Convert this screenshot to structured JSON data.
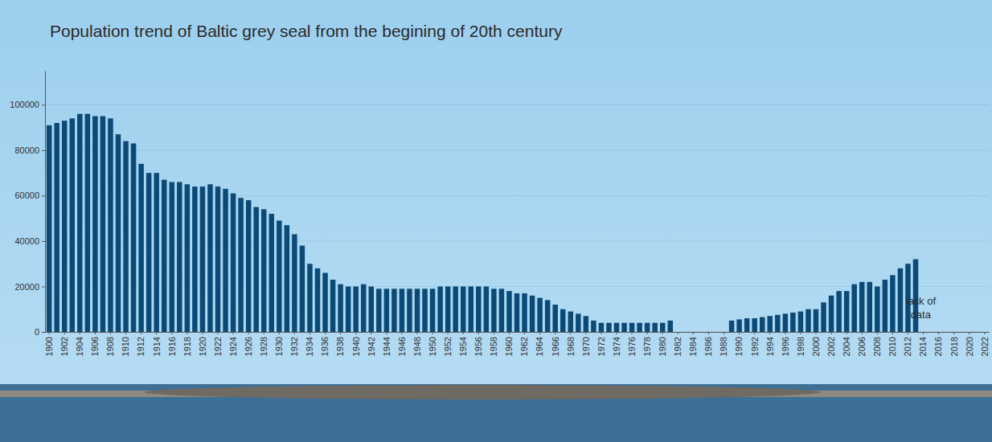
{
  "chart_data": {
    "type": "bar",
    "title": "Population trend of Baltic grey seal from the begining of 20th century",
    "annotation": "lack of data",
    "categories": [
      "1900",
      null,
      "1902",
      null,
      "1904",
      null,
      "1906",
      null,
      "1908",
      null,
      "1910",
      null,
      "1912",
      null,
      "1914",
      null,
      "1916",
      null,
      "1918",
      null,
      "1920",
      null,
      "1922",
      null,
      "1924",
      null,
      "1926",
      null,
      "1928",
      null,
      "1930",
      null,
      "1932",
      null,
      "1934",
      null,
      "1936",
      null,
      "1938",
      null,
      "1940",
      null,
      "1942",
      null,
      "1944",
      null,
      "1946",
      null,
      "1948",
      null,
      "1950",
      null,
      "1952",
      null,
      "1954",
      null,
      "1956",
      null,
      "1958",
      null,
      "1960",
      null,
      "1962",
      null,
      "1964",
      null,
      "1966",
      null,
      "1968",
      null,
      "1970",
      null,
      "1972",
      null,
      "1974",
      null,
      "1976",
      null,
      "1978",
      null,
      "1980",
      null,
      "1982",
      null,
      "1984",
      null,
      "1986",
      null,
      "1988",
      null,
      "1990",
      null,
      "1992",
      null,
      "1994",
      null,
      "1996",
      null,
      "1998",
      null,
      "2000",
      null,
      "2002",
      null,
      "2004",
      null,
      "2006",
      null,
      "2008",
      null,
      "2010",
      null,
      "2012",
      null,
      "2014",
      null,
      "2016",
      null,
      "2018",
      null,
      "2020",
      null,
      "2022"
    ],
    "values": [
      91000,
      92000,
      93000,
      94000,
      96000,
      96000,
      95000,
      95000,
      94000,
      87000,
      84000,
      83000,
      74000,
      70000,
      70000,
      67000,
      66000,
      66000,
      65000,
      64000,
      64000,
      65000,
      64000,
      63000,
      61000,
      59000,
      58000,
      55000,
      54000,
      52000,
      49000,
      47000,
      43000,
      38000,
      30000,
      28000,
      26000,
      23000,
      21000,
      20000,
      20000,
      21000,
      20000,
      19000,
      19000,
      19000,
      19000,
      19000,
      19000,
      19000,
      19000,
      20000,
      20000,
      20000,
      20000,
      20000,
      20000,
      20000,
      19000,
      19000,
      18000,
      17000,
      17000,
      16000,
      15000,
      14000,
      12000,
      10000,
      9000,
      8000,
      7000,
      5000,
      4000,
      4000,
      4000,
      4000,
      4000,
      4000,
      4000,
      4000,
      4000,
      5000,
      null,
      null,
      null,
      null,
      null,
      null,
      null,
      5000,
      5500,
      6000,
      6000,
      6500,
      7000,
      7500,
      8000,
      8500,
      9000,
      10000,
      10000,
      13000,
      16000,
      18000,
      18000,
      21000,
      22000,
      22000,
      20000,
      23000,
      25000,
      28000,
      30000,
      32000,
      null,
      null,
      null,
      null,
      null,
      null,
      null,
      null,
      null
    ],
    "color": "#0b4a77",
    "ylim": [
      0,
      115000
    ],
    "yticks": [
      0,
      20000,
      40000,
      60000,
      80000,
      100000
    ],
    "grid": true
  }
}
